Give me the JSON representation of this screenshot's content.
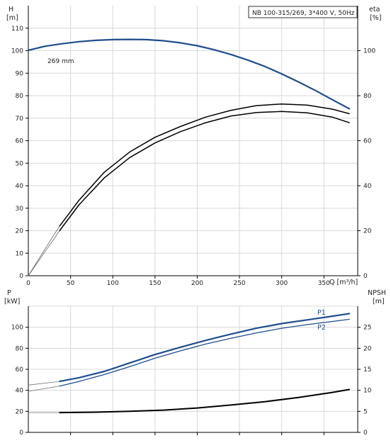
{
  "chart_data": [
    {
      "type": "line",
      "title": "NB 100-315/269, 3*400 V, 50Hz",
      "xlabel": "Q [m³/h]",
      "xlim": [
        0,
        390
      ],
      "x_ticks": [
        0,
        50,
        100,
        150,
        200,
        250,
        300,
        350
      ],
      "left_axis": {
        "label_line1": "H",
        "label_line2": "[m]",
        "ylim": [
          0,
          120
        ],
        "ticks": [
          0,
          10,
          20,
          30,
          40,
          50,
          60,
          70,
          80,
          90,
          100,
          110
        ]
      },
      "right_axis": {
        "label_line1": "eta",
        "label_line2": "[%]",
        "ylim": [
          0,
          120
        ],
        "ticks": [
          0,
          20,
          40,
          60,
          80,
          100
        ]
      },
      "grid": true,
      "series": [
        {
          "name": "269 mm",
          "axis": "left",
          "color": "#1f4e8c",
          "width": 2.2,
          "x": [
            0,
            20,
            40,
            60,
            80,
            100,
            120,
            140,
            160,
            180,
            200,
            220,
            240,
            260,
            280,
            300,
            320,
            340,
            360,
            380
          ],
          "y": [
            100.2,
            102,
            103.1,
            104.0,
            104.6,
            104.9,
            105.0,
            104.9,
            104.4,
            103.5,
            102.2,
            100.4,
            98.3,
            95.8,
            93.0,
            89.7,
            86.1,
            82.3,
            78.2,
            74.2
          ]
        },
        {
          "name": "",
          "axis": "right",
          "color": "#000000",
          "width": 1.5,
          "x": [
            37,
            60,
            90,
            120,
            150,
            180,
            210,
            240,
            270,
            300,
            330,
            360,
            380
          ],
          "y": [
            22,
            33.5,
            46,
            55,
            61.5,
            66.3,
            70.5,
            73.5,
            75.6,
            76.3,
            75.8,
            74,
            72
          ]
        },
        {
          "name": "",
          "axis": "right",
          "color": "#000000",
          "width": 1.5,
          "x": [
            37,
            60,
            90,
            120,
            150,
            180,
            210,
            240,
            270,
            300,
            330,
            360,
            380
          ],
          "y": [
            20,
            31.5,
            43.5,
            52.5,
            59,
            64,
            68,
            71,
            72.5,
            73,
            72.4,
            70.5,
            68
          ]
        },
        {
          "name": "",
          "axis": "right",
          "color": "#666666",
          "width": 0.8,
          "x": [
            0,
            10,
            20,
            30,
            37
          ],
          "y": [
            0,
            6,
            12,
            18,
            22
          ]
        },
        {
          "name": "",
          "axis": "right",
          "color": "#666666",
          "width": 0.8,
          "x": [
            0,
            10,
            20,
            30,
            37
          ],
          "y": [
            0,
            5.4,
            10.8,
            16.2,
            20
          ]
        }
      ]
    },
    {
      "type": "line",
      "xlim": [
        0,
        390
      ],
      "left_axis": {
        "label_line1": "P",
        "label_line2": "[kW]",
        "ylim": [
          0,
          120
        ],
        "ticks": [
          0,
          20,
          40,
          60,
          80,
          100
        ]
      },
      "right_axis": {
        "label_line1": "NPSH",
        "label_line2": "[m]",
        "ylim": [
          0,
          30
        ],
        "ticks": [
          0,
          5,
          10,
          15,
          20,
          25
        ]
      },
      "grid": true,
      "series": [
        {
          "name": "P1",
          "axis": "left",
          "color": "#1f4e8c",
          "width": 2.2,
          "x": [
            37,
            60,
            90,
            120,
            150,
            180,
            210,
            240,
            270,
            300,
            330,
            360,
            380
          ],
          "y": [
            48.5,
            52,
            58,
            66,
            74,
            81,
            87.5,
            93.5,
            99,
            103.5,
            107,
            110.5,
            113
          ]
        },
        {
          "name": "P2",
          "axis": "left",
          "color": "#1f4e8c",
          "width": 1.3,
          "x": [
            37,
            60,
            90,
            120,
            150,
            180,
            210,
            240,
            270,
            300,
            330,
            360,
            380
          ],
          "y": [
            44,
            48.5,
            55,
            62.5,
            70.5,
            77.5,
            84,
            89.5,
            94.5,
            99,
            102.5,
            105.5,
            107.5
          ]
        },
        {
          "name": "",
          "axis": "right",
          "color": "#000000",
          "width": 2.0,
          "x": [
            37,
            80,
            120,
            160,
            200,
            240,
            280,
            320,
            360,
            380
          ],
          "y": [
            4.7,
            4.8,
            5.0,
            5.3,
            5.8,
            6.5,
            7.3,
            8.3,
            9.5,
            10.2
          ]
        },
        {
          "name": "",
          "axis": "left",
          "color": "#777777",
          "width": 0.8,
          "x": [
            0,
            37
          ],
          "y": [
            45,
            48.5
          ]
        },
        {
          "name": "",
          "axis": "left",
          "color": "#777777",
          "width": 0.8,
          "x": [
            0,
            37
          ],
          "y": [
            39,
            44
          ]
        },
        {
          "name": "",
          "axis": "right",
          "color": "#777777",
          "width": 0.8,
          "x": [
            0,
            37
          ],
          "y": [
            4.7,
            4.7
          ]
        }
      ]
    }
  ]
}
